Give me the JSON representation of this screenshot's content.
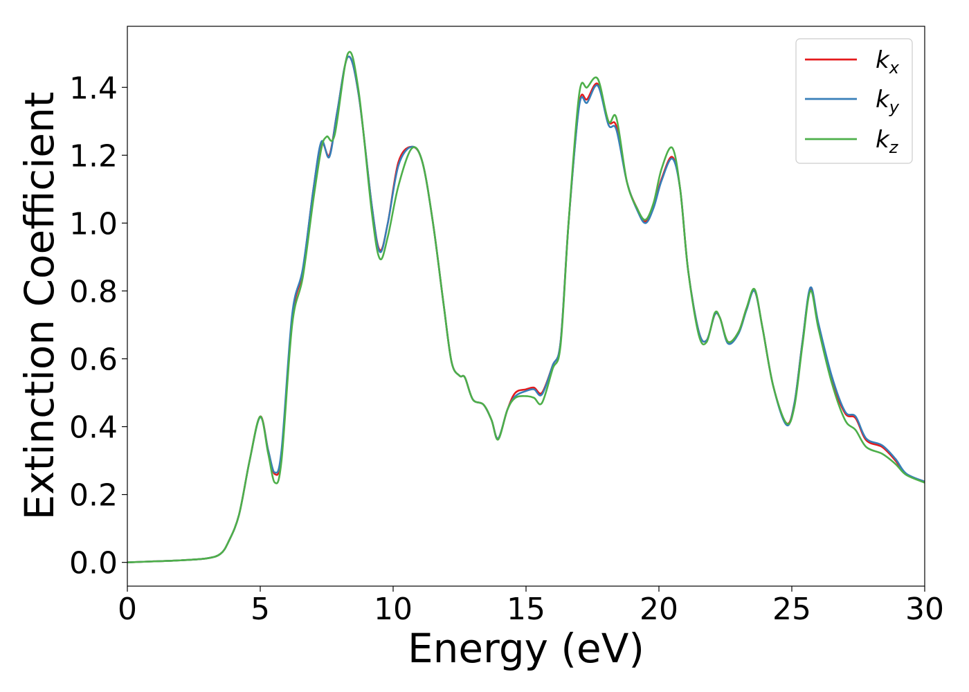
{
  "chart_data": {
    "type": "line",
    "title": "",
    "xlabel": "Energy (eV)",
    "ylabel": "Extinction Coefficient",
    "xlim": [
      0,
      30
    ],
    "ylim": [
      -0.07,
      1.58
    ],
    "xticks": [
      0,
      5,
      10,
      15,
      20,
      25,
      30
    ],
    "xtick_labels": [
      "0",
      "5",
      "10",
      "15",
      "20",
      "25",
      "30"
    ],
    "yticks": [
      0.0,
      0.2,
      0.4,
      0.6,
      0.8,
      1.0,
      1.2,
      1.4
    ],
    "ytick_labels": [
      "0.0",
      "0.2",
      "0.4",
      "0.6",
      "0.8",
      "1.0",
      "1.2",
      "1.4"
    ],
    "grid": false,
    "legend_position": "top-right",
    "series": [
      {
        "name": "k_x",
        "label_base": "k",
        "label_sub": "x",
        "color": "#e41a1c",
        "points": [
          [
            0,
            0.0
          ],
          [
            1,
            0.003
          ],
          [
            2,
            0.006
          ],
          [
            3,
            0.012
          ],
          [
            3.5,
            0.025
          ],
          [
            3.8,
            0.06
          ],
          [
            4.2,
            0.14
          ],
          [
            4.6,
            0.3
          ],
          [
            5.0,
            0.43
          ],
          [
            5.3,
            0.33
          ],
          [
            5.55,
            0.26
          ],
          [
            5.8,
            0.32
          ],
          [
            6.2,
            0.72
          ],
          [
            6.6,
            0.86
          ],
          [
            7.0,
            1.1
          ],
          [
            7.3,
            1.235
          ],
          [
            7.6,
            1.2
          ],
          [
            7.9,
            1.33
          ],
          [
            8.3,
            1.49
          ],
          [
            8.7,
            1.38
          ],
          [
            9.2,
            1.05
          ],
          [
            9.5,
            0.92
          ],
          [
            9.8,
            1.0
          ],
          [
            10.2,
            1.18
          ],
          [
            10.7,
            1.225
          ],
          [
            11.1,
            1.18
          ],
          [
            11.5,
            1.0
          ],
          [
            11.9,
            0.76
          ],
          [
            12.2,
            0.59
          ],
          [
            12.5,
            0.55
          ],
          [
            12.7,
            0.545
          ],
          [
            13.0,
            0.48
          ],
          [
            13.4,
            0.465
          ],
          [
            13.7,
            0.42
          ],
          [
            13.95,
            0.365
          ],
          [
            14.3,
            0.45
          ],
          [
            14.6,
            0.5
          ],
          [
            15.0,
            0.51
          ],
          [
            15.3,
            0.515
          ],
          [
            15.6,
            0.5
          ],
          [
            16.0,
            0.58
          ],
          [
            16.3,
            0.65
          ],
          [
            16.6,
            1.0
          ],
          [
            17.0,
            1.35
          ],
          [
            17.3,
            1.365
          ],
          [
            17.7,
            1.41
          ],
          [
            18.1,
            1.3
          ],
          [
            18.4,
            1.285
          ],
          [
            18.8,
            1.12
          ],
          [
            19.2,
            1.04
          ],
          [
            19.5,
            1.005
          ],
          [
            19.8,
            1.05
          ],
          [
            20.1,
            1.13
          ],
          [
            20.5,
            1.195
          ],
          [
            20.8,
            1.1
          ],
          [
            21.1,
            0.86
          ],
          [
            21.5,
            0.68
          ],
          [
            21.8,
            0.655
          ],
          [
            22.1,
            0.73
          ],
          [
            22.3,
            0.72
          ],
          [
            22.6,
            0.65
          ],
          [
            23.0,
            0.68
          ],
          [
            23.3,
            0.75
          ],
          [
            23.6,
            0.8
          ],
          [
            23.9,
            0.69
          ],
          [
            24.3,
            0.52
          ],
          [
            24.8,
            0.41
          ],
          [
            25.1,
            0.47
          ],
          [
            25.4,
            0.65
          ],
          [
            25.7,
            0.805
          ],
          [
            26.0,
            0.7
          ],
          [
            26.5,
            0.54
          ],
          [
            27.0,
            0.44
          ],
          [
            27.4,
            0.425
          ],
          [
            27.8,
            0.36
          ],
          [
            28.4,
            0.34
          ],
          [
            28.9,
            0.3
          ],
          [
            29.3,
            0.26
          ],
          [
            30.0,
            0.238
          ]
        ]
      },
      {
        "name": "k_y",
        "label_base": "k",
        "label_sub": "y",
        "color": "#377eb8",
        "points": [
          [
            0,
            0.0
          ],
          [
            1,
            0.003
          ],
          [
            2,
            0.006
          ],
          [
            3,
            0.012
          ],
          [
            3.5,
            0.025
          ],
          [
            3.8,
            0.06
          ],
          [
            4.2,
            0.14
          ],
          [
            4.6,
            0.3
          ],
          [
            5.0,
            0.428
          ],
          [
            5.3,
            0.33
          ],
          [
            5.55,
            0.265
          ],
          [
            5.8,
            0.33
          ],
          [
            6.2,
            0.73
          ],
          [
            6.6,
            0.865
          ],
          [
            7.0,
            1.1
          ],
          [
            7.3,
            1.24
          ],
          [
            7.6,
            1.195
          ],
          [
            7.9,
            1.33
          ],
          [
            8.3,
            1.49
          ],
          [
            8.7,
            1.38
          ],
          [
            9.2,
            1.05
          ],
          [
            9.5,
            0.915
          ],
          [
            9.8,
            1.0
          ],
          [
            10.2,
            1.17
          ],
          [
            10.7,
            1.225
          ],
          [
            11.1,
            1.18
          ],
          [
            11.5,
            1.0
          ],
          [
            11.9,
            0.76
          ],
          [
            12.2,
            0.59
          ],
          [
            12.5,
            0.55
          ],
          [
            12.7,
            0.545
          ],
          [
            13.0,
            0.48
          ],
          [
            13.4,
            0.465
          ],
          [
            13.7,
            0.42
          ],
          [
            13.95,
            0.365
          ],
          [
            14.3,
            0.45
          ],
          [
            14.6,
            0.49
          ],
          [
            15.0,
            0.505
          ],
          [
            15.3,
            0.51
          ],
          [
            15.6,
            0.495
          ],
          [
            16.0,
            0.58
          ],
          [
            16.3,
            0.65
          ],
          [
            16.6,
            1.0
          ],
          [
            17.0,
            1.345
          ],
          [
            17.3,
            1.355
          ],
          [
            17.7,
            1.405
          ],
          [
            18.1,
            1.29
          ],
          [
            18.4,
            1.275
          ],
          [
            18.8,
            1.12
          ],
          [
            19.2,
            1.035
          ],
          [
            19.5,
            1.0
          ],
          [
            19.8,
            1.045
          ],
          [
            20.1,
            1.125
          ],
          [
            20.5,
            1.19
          ],
          [
            20.8,
            1.1
          ],
          [
            21.1,
            0.86
          ],
          [
            21.5,
            0.68
          ],
          [
            21.8,
            0.655
          ],
          [
            22.1,
            0.73
          ],
          [
            22.3,
            0.72
          ],
          [
            22.6,
            0.645
          ],
          [
            23.0,
            0.675
          ],
          [
            23.3,
            0.745
          ],
          [
            23.6,
            0.8
          ],
          [
            23.9,
            0.69
          ],
          [
            24.3,
            0.52
          ],
          [
            24.8,
            0.405
          ],
          [
            25.1,
            0.47
          ],
          [
            25.4,
            0.65
          ],
          [
            25.7,
            0.81
          ],
          [
            26.0,
            0.705
          ],
          [
            26.5,
            0.55
          ],
          [
            27.0,
            0.445
          ],
          [
            27.4,
            0.43
          ],
          [
            27.8,
            0.365
          ],
          [
            28.4,
            0.345
          ],
          [
            28.9,
            0.305
          ],
          [
            29.3,
            0.262
          ],
          [
            30.0,
            0.238
          ]
        ]
      },
      {
        "name": "k_z",
        "label_base": "k",
        "label_sub": "z",
        "color": "#4daf4a",
        "points": [
          [
            0,
            0.0
          ],
          [
            1,
            0.003
          ],
          [
            2,
            0.006
          ],
          [
            3,
            0.012
          ],
          [
            3.5,
            0.025
          ],
          [
            3.8,
            0.06
          ],
          [
            4.2,
            0.14
          ],
          [
            4.6,
            0.3
          ],
          [
            5.0,
            0.43
          ],
          [
            5.3,
            0.32
          ],
          [
            5.55,
            0.235
          ],
          [
            5.8,
            0.3
          ],
          [
            6.2,
            0.7
          ],
          [
            6.6,
            0.84
          ],
          [
            7.0,
            1.07
          ],
          [
            7.3,
            1.22
          ],
          [
            7.5,
            1.255
          ],
          [
            7.8,
            1.26
          ],
          [
            8.3,
            1.5
          ],
          [
            8.7,
            1.39
          ],
          [
            9.2,
            1.03
          ],
          [
            9.5,
            0.895
          ],
          [
            9.8,
            0.96
          ],
          [
            10.2,
            1.11
          ],
          [
            10.7,
            1.22
          ],
          [
            11.1,
            1.18
          ],
          [
            11.5,
            1.0
          ],
          [
            11.9,
            0.76
          ],
          [
            12.2,
            0.59
          ],
          [
            12.5,
            0.55
          ],
          [
            12.7,
            0.545
          ],
          [
            13.0,
            0.48
          ],
          [
            13.4,
            0.465
          ],
          [
            13.7,
            0.42
          ],
          [
            13.95,
            0.362
          ],
          [
            14.3,
            0.45
          ],
          [
            14.6,
            0.485
          ],
          [
            15.0,
            0.49
          ],
          [
            15.3,
            0.485
          ],
          [
            15.6,
            0.47
          ],
          [
            16.0,
            0.57
          ],
          [
            16.3,
            0.64
          ],
          [
            16.6,
            1.0
          ],
          [
            17.0,
            1.38
          ],
          [
            17.3,
            1.4
          ],
          [
            17.7,
            1.425
          ],
          [
            18.1,
            1.3
          ],
          [
            18.4,
            1.31
          ],
          [
            18.8,
            1.12
          ],
          [
            19.2,
            1.04
          ],
          [
            19.5,
            1.01
          ],
          [
            19.8,
            1.06
          ],
          [
            20.1,
            1.16
          ],
          [
            20.5,
            1.222
          ],
          [
            20.8,
            1.1
          ],
          [
            21.1,
            0.86
          ],
          [
            21.5,
            0.67
          ],
          [
            21.8,
            0.65
          ],
          [
            22.1,
            0.735
          ],
          [
            22.3,
            0.72
          ],
          [
            22.6,
            0.65
          ],
          [
            23.0,
            0.68
          ],
          [
            23.3,
            0.75
          ],
          [
            23.6,
            0.805
          ],
          [
            23.9,
            0.69
          ],
          [
            24.3,
            0.52
          ],
          [
            24.8,
            0.41
          ],
          [
            25.1,
            0.46
          ],
          [
            25.4,
            0.64
          ],
          [
            25.7,
            0.8
          ],
          [
            26.0,
            0.69
          ],
          [
            26.5,
            0.53
          ],
          [
            27.0,
            0.42
          ],
          [
            27.4,
            0.39
          ],
          [
            27.8,
            0.34
          ],
          [
            28.4,
            0.32
          ],
          [
            28.9,
            0.29
          ],
          [
            29.3,
            0.258
          ],
          [
            30.0,
            0.235
          ]
        ]
      }
    ]
  }
}
